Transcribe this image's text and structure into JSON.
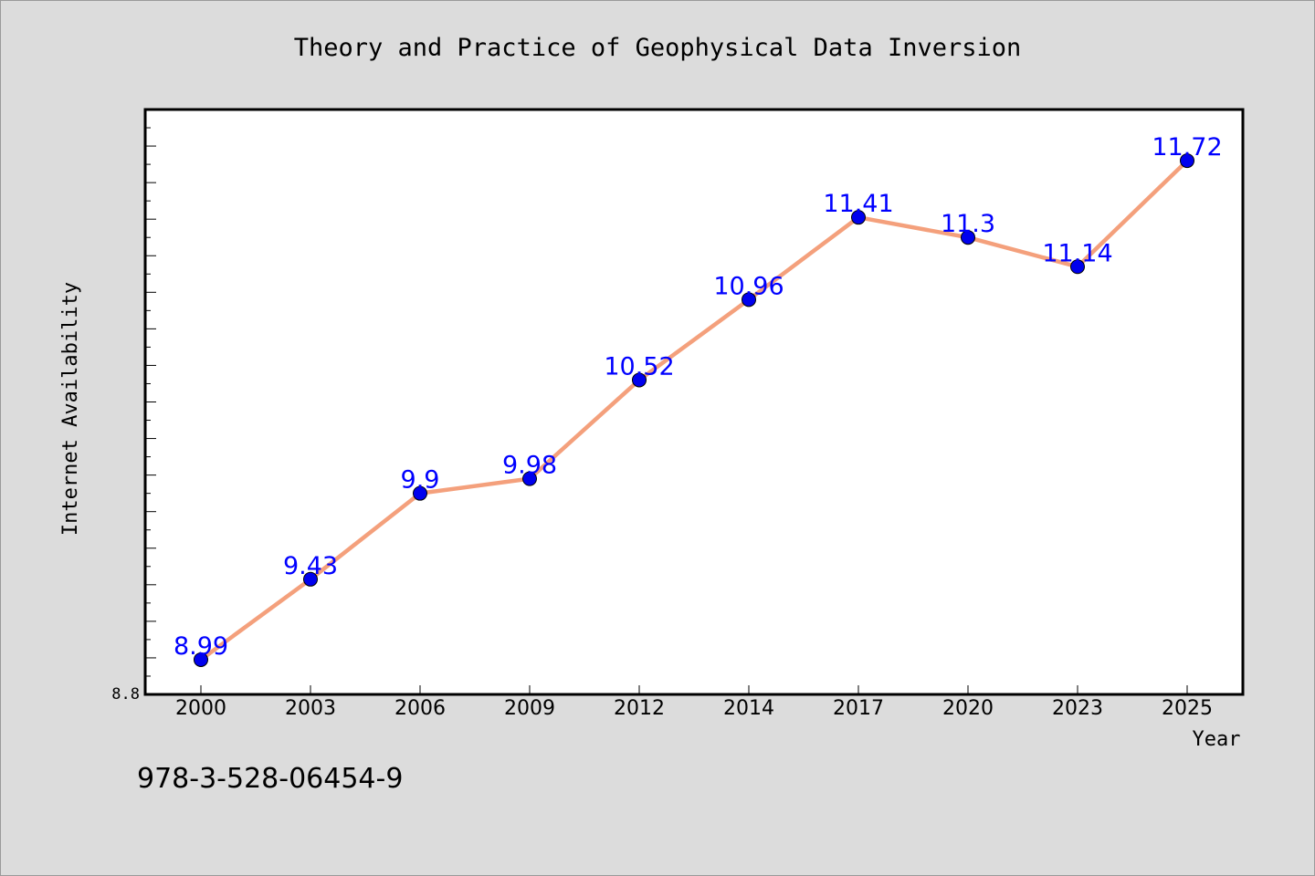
{
  "chart_data": {
    "type": "line",
    "title": "Theory and Practice of Geophysical Data Inversion",
    "xlabel": "Year",
    "ylabel": "Internet Availability",
    "categories": [
      "2000",
      "2003",
      "2006",
      "2009",
      "2012",
      "2014",
      "2017",
      "2020",
      "2023",
      "2025"
    ],
    "series": [
      {
        "values": [
          8.99,
          9.43,
          9.9,
          9.98,
          10.52,
          10.96,
          11.41,
          11.3,
          11.14,
          11.72
        ],
        "data_labels": [
          "8.99",
          "9.43",
          "9.9",
          "9.98",
          "10.52",
          "10.96",
          "11.41",
          "11.3",
          "11.14",
          "11.72"
        ]
      }
    ],
    "ylim": [
      8.8,
      12.0
    ],
    "y_tick_labels": [
      "8.8"
    ],
    "grid": false,
    "line_color": "#f4a07c",
    "marker_color": "#0000ee",
    "data_label_color": "#0000ff"
  },
  "footer": {
    "isbn": "978-3-528-06454-9"
  }
}
